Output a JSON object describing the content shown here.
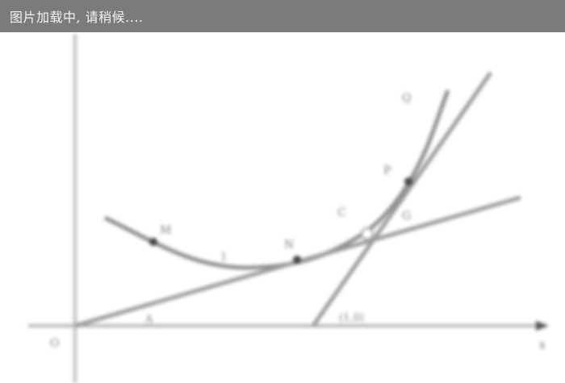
{
  "loading_bar": {
    "text": "图片加载中, 请稍候....",
    "background": "#7b7b7b",
    "text_color": "#f4f4f4"
  },
  "figure": {
    "blurred": true,
    "line_color": "#8c8c8c",
    "dot_color": "#444444",
    "labels": {
      "x_axis": "x",
      "origin": "O",
      "c_curve": "C",
      "l_line": "l",
      "m_point": "M",
      "n_point": "N",
      "p_point": "P",
      "q_point": "Q",
      "mid_label": "l",
      "angle_label": "A",
      "x_intercept": "(1,0)",
      "intersection": "G"
    }
  }
}
